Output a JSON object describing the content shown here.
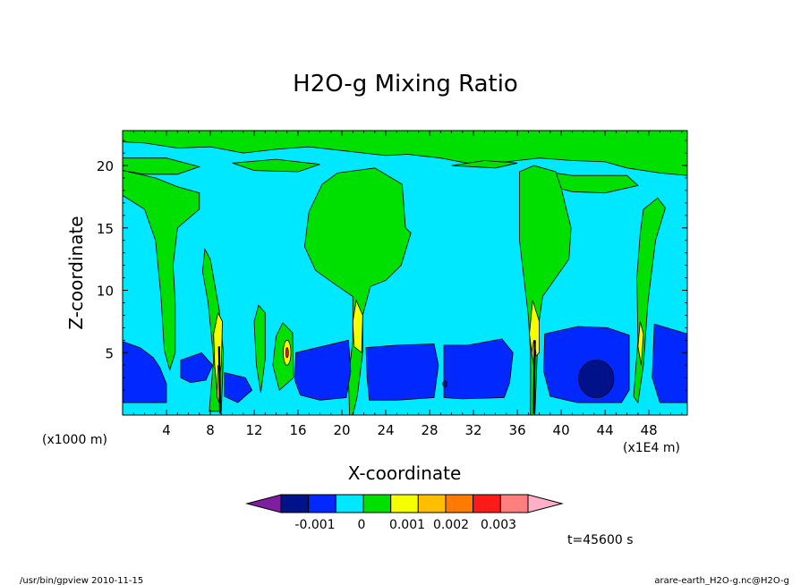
{
  "chart_data": {
    "type": "heatmap",
    "title": "H2O-g Mixing Ratio",
    "xlabel": "X-coordinate",
    "ylabel": "Z-coordinate",
    "x_unit_left": "(x1000 m)",
    "x_unit_right": "(x1E4 m)",
    "xlim": [
      0,
      51.5
    ],
    "ylim": [
      0,
      22.8
    ],
    "x_ticks": [
      4,
      8,
      12,
      16,
      20,
      24,
      28,
      32,
      36,
      40,
      44,
      48
    ],
    "y_ticks": [
      5,
      10,
      15,
      20
    ],
    "colorbar": {
      "colors": [
        "#7d1fa0",
        "#00128a",
        "#0028ff",
        "#00e8ff",
        "#00e000",
        "#f5ff00",
        "#ffbf00",
        "#ff7a00",
        "#ff1a1a",
        "#ff7f7f",
        "#ffb0c8"
      ],
      "labels": [
        "-0.001",
        "0",
        "0.001",
        "0.002",
        "0.003"
      ]
    },
    "field_colors": {
      "background": "#00e8ff",
      "moist": "#00e000",
      "dry": "#0028ff",
      "very_dry": "#00128a",
      "plume_yellow": "#f5ff00",
      "plume_orange": "#ffbf00",
      "plume_red": "#ff1a1a"
    },
    "time_label": "t=45600 s"
  },
  "footer": {
    "left": "/usr/bin/gpview  2010-11-15",
    "right": "arare-earth_H2O-g.nc@H2O-g"
  }
}
